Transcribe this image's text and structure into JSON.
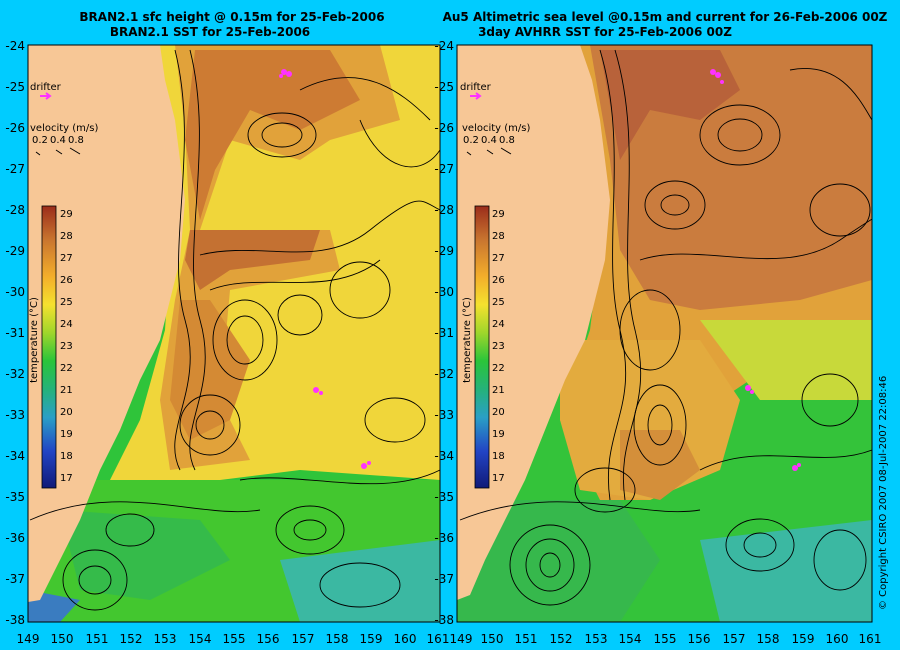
{
  "left_panel": {
    "title_line1": "BRAN2.1 sfc height @ 0.15m for 25-Feb-2006",
    "title_line2": "BRAN2.1 SST for 25-Feb-2006"
  },
  "right_panel": {
    "title_line1": "Au5 Altimetric sea level  @0.15m and current for 26-Feb-2006 00Z",
    "title_line2": "3day AVHRR SST for 25-Feb-2006 00Z"
  },
  "legend": {
    "drifter_label": "drifter",
    "velocity_label": "velocity (m/s)",
    "velocity_ticks": [
      "0.2",
      "0.4",
      "0.8"
    ],
    "temperature_label": "temperature (°C)",
    "colorbar_values": [
      "29",
      "28",
      "27",
      "26",
      "25",
      "24",
      "23",
      "22",
      "21",
      "20",
      "19",
      "18",
      "17"
    ]
  },
  "axes": {
    "lat_ticks": [
      "-24",
      "-25",
      "-26",
      "-27",
      "-28",
      "-29",
      "-30",
      "-31",
      "-32",
      "-33",
      "-34",
      "-35",
      "-36",
      "-37",
      "-38"
    ],
    "lon_ticks": [
      "149",
      "150",
      "151",
      "152",
      "153",
      "154",
      "155",
      "156",
      "157",
      "158",
      "159",
      "160",
      "161"
    ]
  },
  "copyright": "© Copyright CSIRO 2007  08-Jul-2007 22:08:46",
  "colors": {
    "background": "#00ccff",
    "land": "#f7c796",
    "drifter": "#ff33ff",
    "warm": "#c66a2a",
    "mid": "#f2c22a",
    "cool": "#2cc22e",
    "cold": "#3aa7b0"
  }
}
